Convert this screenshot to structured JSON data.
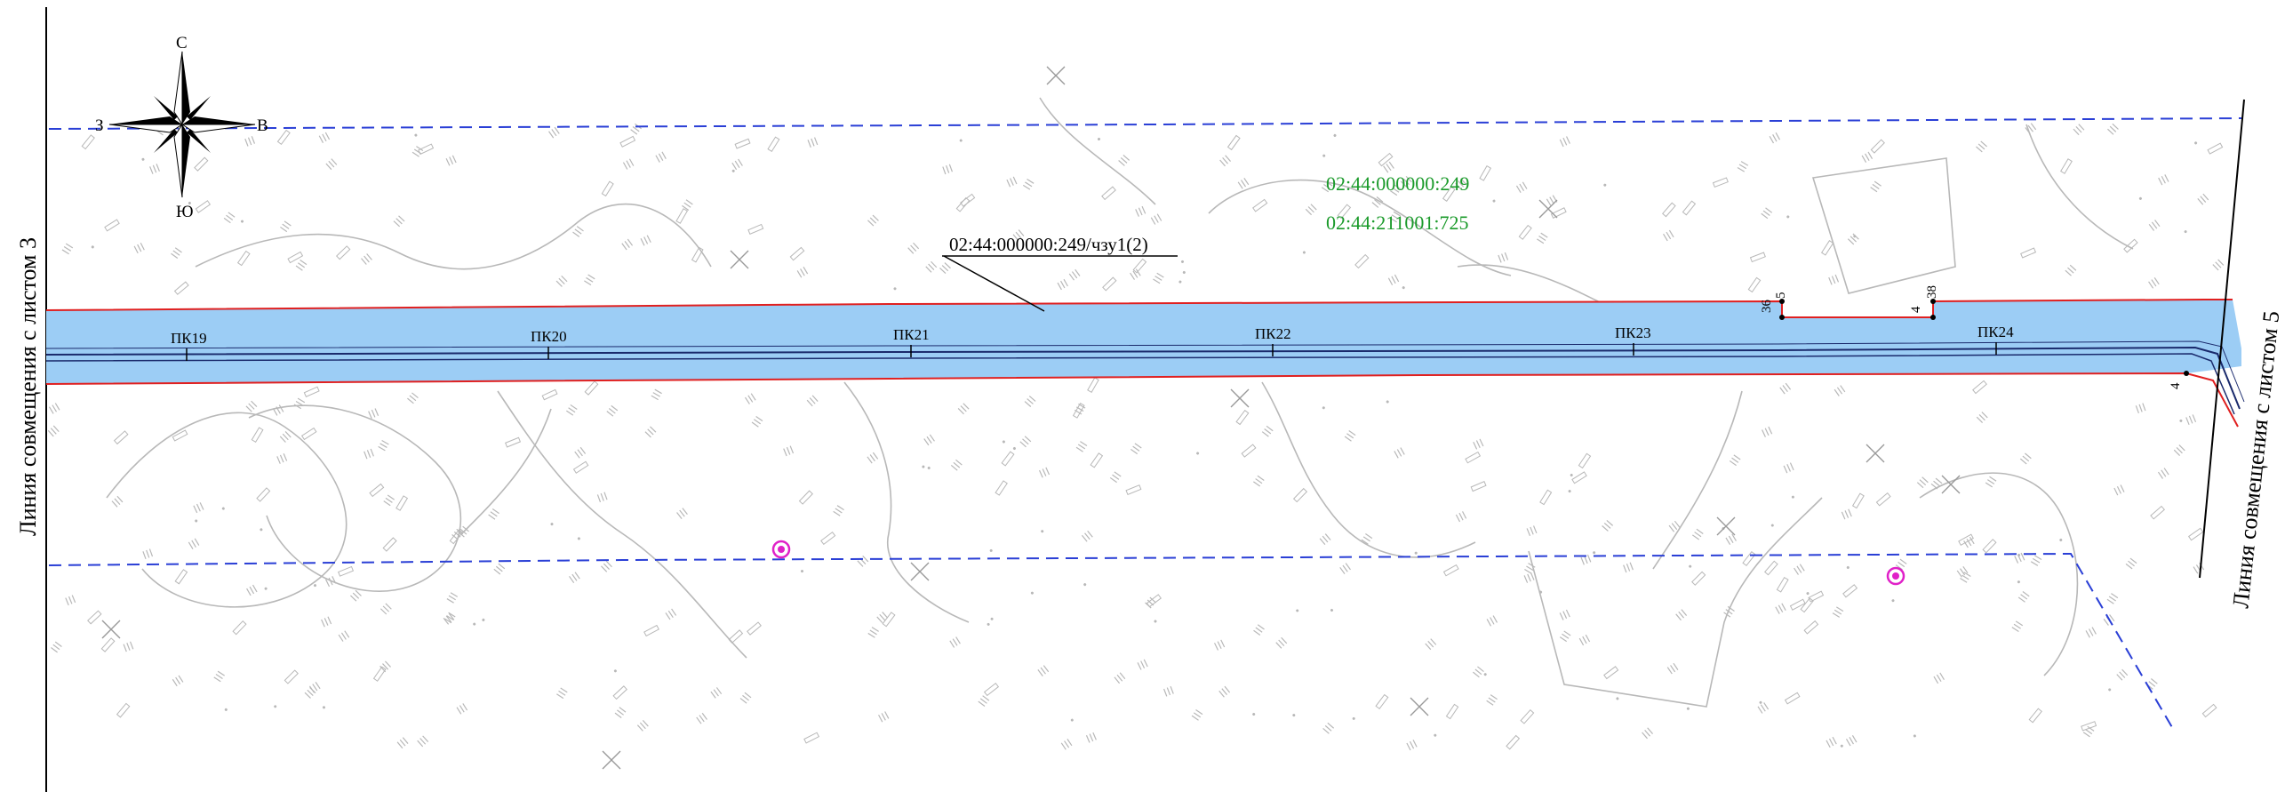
{
  "compass": {
    "north": "С",
    "south": "Ю",
    "west": "З",
    "east": "В"
  },
  "match_lines": {
    "left": "Линия совмещения с листом 3",
    "right": "Линия совмещения с листом 5"
  },
  "pickets": [
    "ПК19",
    "ПК20",
    "ПК21",
    "ПК22",
    "ПК23",
    "ПК24"
  ],
  "cadastral": {
    "parcel_main": "02:44:000000:249",
    "parcel_second": "02:44:211001:725",
    "subparcel": "02:44:000000:249/чзу1(2)"
  },
  "boundary_points": [
    "36",
    "5",
    "4",
    "38",
    "4"
  ],
  "colors": {
    "corridor_fill": "#9ccdf5",
    "corridor_border": "#e02020",
    "axis": "#1a2a6c",
    "zone_dash": "#2a3fd6",
    "terrain": "#b8b8b8",
    "cadastral_text": "#1a9a2a",
    "marker": "#e020c8"
  },
  "icons": [
    "compass-rose-icon",
    "survey-marker-icon"
  ]
}
